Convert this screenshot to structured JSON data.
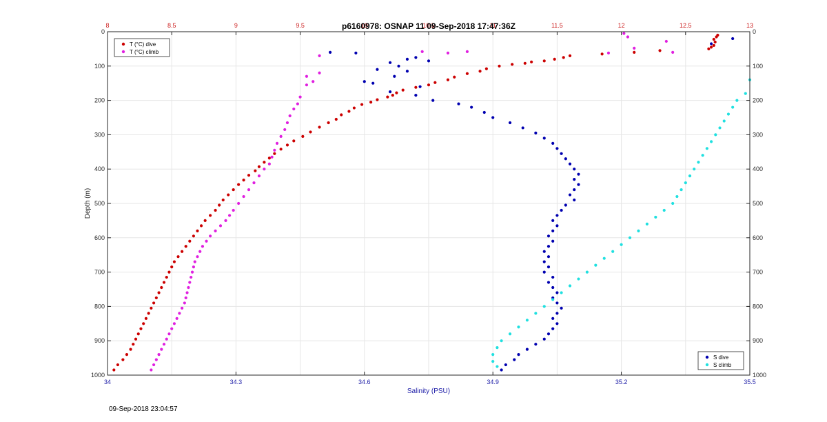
{
  "chart_data": {
    "type": "scatter",
    "title": "p6160978: OSNAP 11 09-Sep-2018 17:47:36Z",
    "xlabel": "Salinity (PSU)",
    "ylabel": "Depth (m)",
    "xlim": [
      34,
      35.5
    ],
    "x_ticks": [
      "34",
      "34.3",
      "34.6",
      "34.9",
      "35.2",
      "35.5"
    ],
    "x_tick_values": [
      34,
      34.3,
      34.6,
      34.9,
      35.2,
      35.5
    ],
    "x2lim": [
      8,
      13
    ],
    "x2_ticks": [
      "8",
      "8.5",
      "9",
      "9.5",
      "10",
      "10.5",
      "11",
      "11.5",
      "12",
      "12.5",
      "13"
    ],
    "x2_tick_values": [
      8,
      8.5,
      9,
      9.5,
      10,
      10.5,
      11,
      11.5,
      12,
      12.5,
      13
    ],
    "ylim": [
      0,
      1000
    ],
    "y_ticks": [
      "0",
      "100",
      "200",
      "300",
      "400",
      "500",
      "600",
      "700",
      "800",
      "900",
      "1000"
    ],
    "y_tick_values": [
      0,
      100,
      200,
      300,
      400,
      500,
      600,
      700,
      800,
      900,
      1000
    ],
    "y_reversed": true,
    "grid": true,
    "legend_left": {
      "placement": "top-left",
      "entries": [
        "T (°C) dive",
        "T (°C) climb"
      ]
    },
    "legend_right": {
      "placement": "bottom-right",
      "entries": [
        "S dive",
        "S climb"
      ]
    },
    "colors": {
      "t_dive": "#cc0000",
      "t_climb": "#e020e0",
      "s_dive": "#0000b0",
      "s_climb": "#20e0e0",
      "bottom_axis": "#1a1aa6",
      "top_axis": "#cc2020"
    },
    "series": [
      {
        "name": "T (°C) dive",
        "axis": "top",
        "points": [
          [
            12.75,
            10
          ],
          [
            12.74,
            15
          ],
          [
            12.72,
            22
          ],
          [
            12.73,
            30
          ],
          [
            12.72,
            40
          ],
          [
            12.7,
            45
          ],
          [
            12.68,
            50
          ],
          [
            12.3,
            55
          ],
          [
            12.1,
            60
          ],
          [
            11.85,
            65
          ],
          [
            11.6,
            70
          ],
          [
            11.55,
            75
          ],
          [
            11.48,
            80
          ],
          [
            11.4,
            85
          ],
          [
            11.3,
            88
          ],
          [
            11.25,
            92
          ],
          [
            11.15,
            95
          ],
          [
            11.05,
            100
          ],
          [
            10.95,
            108
          ],
          [
            10.9,
            115
          ],
          [
            10.8,
            122
          ],
          [
            10.7,
            132
          ],
          [
            10.65,
            140
          ],
          [
            10.55,
            148
          ],
          [
            10.5,
            155
          ],
          [
            10.4,
            162
          ],
          [
            10.3,
            170
          ],
          [
            10.25,
            178
          ],
          [
            10.22,
            185
          ],
          [
            10.18,
            190
          ],
          [
            10.1,
            198
          ],
          [
            10.05,
            205
          ],
          [
            9.98,
            212
          ],
          [
            9.92,
            222
          ],
          [
            9.88,
            232
          ],
          [
            9.82,
            242
          ],
          [
            9.78,
            255
          ],
          [
            9.72,
            265
          ],
          [
            9.65,
            278
          ],
          [
            9.58,
            292
          ],
          [
            9.52,
            305
          ],
          [
            9.45,
            318
          ],
          [
            9.4,
            330
          ],
          [
            9.35,
            342
          ],
          [
            9.3,
            355
          ],
          [
            9.26,
            368
          ],
          [
            9.22,
            380
          ],
          [
            9.18,
            393
          ],
          [
            9.15,
            405
          ],
          [
            9.1,
            418
          ],
          [
            9.06,
            432
          ],
          [
            9.02,
            445
          ],
          [
            8.98,
            460
          ],
          [
            8.94,
            475
          ],
          [
            8.9,
            490
          ],
          [
            8.87,
            505
          ],
          [
            8.84,
            520
          ],
          [
            8.8,
            535
          ],
          [
            8.76,
            550
          ],
          [
            8.73,
            565
          ],
          [
            8.7,
            580
          ],
          [
            8.67,
            595
          ],
          [
            8.64,
            610
          ],
          [
            8.61,
            625
          ],
          [
            8.58,
            640
          ],
          [
            8.55,
            655
          ],
          [
            8.52,
            670
          ],
          [
            8.5,
            685
          ],
          [
            8.48,
            700
          ],
          [
            8.46,
            715
          ],
          [
            8.44,
            730
          ],
          [
            8.42,
            745
          ],
          [
            8.4,
            760
          ],
          [
            8.38,
            775
          ],
          [
            8.36,
            790
          ],
          [
            8.34,
            805
          ],
          [
            8.32,
            820
          ],
          [
            8.3,
            835
          ],
          [
            8.28,
            850
          ],
          [
            8.26,
            865
          ],
          [
            8.24,
            880
          ],
          [
            8.22,
            895
          ],
          [
            8.2,
            910
          ],
          [
            8.18,
            925
          ],
          [
            8.15,
            940
          ],
          [
            8.12,
            955
          ],
          [
            8.08,
            970
          ],
          [
            8.05,
            985
          ]
        ]
      },
      {
        "name": "T (°C) climb",
        "axis": "top",
        "points": [
          [
            12.02,
            5
          ],
          [
            12.05,
            15
          ],
          [
            12.1,
            48
          ],
          [
            12.35,
            28
          ],
          [
            12.4,
            60
          ],
          [
            11.9,
            62
          ],
          [
            10.8,
            58
          ],
          [
            10.65,
            62
          ],
          [
            10.45,
            58
          ],
          [
            9.65,
            70
          ],
          [
            9.55,
            130
          ],
          [
            9.6,
            145
          ],
          [
            9.55,
            155
          ],
          [
            9.65,
            120
          ],
          [
            9.5,
            190
          ],
          [
            9.48,
            210
          ],
          [
            9.45,
            225
          ],
          [
            9.42,
            245
          ],
          [
            9.4,
            265
          ],
          [
            9.38,
            285
          ],
          [
            9.35,
            305
          ],
          [
            9.32,
            325
          ],
          [
            9.3,
            345
          ],
          [
            9.28,
            365
          ],
          [
            9.26,
            385
          ],
          [
            9.22,
            400
          ],
          [
            9.18,
            420
          ],
          [
            9.14,
            440
          ],
          [
            9.1,
            460
          ],
          [
            9.06,
            480
          ],
          [
            9.02,
            500
          ],
          [
            8.98,
            520
          ],
          [
            8.95,
            535
          ],
          [
            8.92,
            550
          ],
          [
            8.88,
            565
          ],
          [
            8.84,
            580
          ],
          [
            8.8,
            595
          ],
          [
            8.77,
            610
          ],
          [
            8.74,
            625
          ],
          [
            8.72,
            640
          ],
          [
            8.7,
            655
          ],
          [
            8.68,
            670
          ],
          [
            8.67,
            685
          ],
          [
            8.66,
            700
          ],
          [
            8.65,
            715
          ],
          [
            8.64,
            730
          ],
          [
            8.63,
            745
          ],
          [
            8.62,
            760
          ],
          [
            8.61,
            775
          ],
          [
            8.6,
            790
          ],
          [
            8.58,
            805
          ],
          [
            8.56,
            820
          ],
          [
            8.54,
            835
          ],
          [
            8.52,
            850
          ],
          [
            8.5,
            865
          ],
          [
            8.48,
            880
          ],
          [
            8.46,
            895
          ],
          [
            8.44,
            910
          ],
          [
            8.42,
            925
          ],
          [
            8.4,
            940
          ],
          [
            8.38,
            955
          ],
          [
            8.36,
            970
          ],
          [
            8.34,
            985
          ]
        ]
      },
      {
        "name": "S dive",
        "axis": "bottom",
        "points": [
          [
            35.46,
            20
          ],
          [
            35.41,
            35
          ],
          [
            34.52,
            60
          ],
          [
            34.58,
            62
          ],
          [
            34.72,
            75
          ],
          [
            34.7,
            80
          ],
          [
            34.66,
            90
          ],
          [
            34.75,
            85
          ],
          [
            34.68,
            100
          ],
          [
            34.63,
            110
          ],
          [
            34.7,
            115
          ],
          [
            34.67,
            130
          ],
          [
            34.62,
            150
          ],
          [
            34.6,
            145
          ],
          [
            34.73,
            160
          ],
          [
            34.66,
            175
          ],
          [
            34.72,
            185
          ],
          [
            34.76,
            200
          ],
          [
            34.82,
            210
          ],
          [
            34.85,
            220
          ],
          [
            34.88,
            235
          ],
          [
            34.9,
            250
          ],
          [
            34.94,
            265
          ],
          [
            34.97,
            280
          ],
          [
            35.0,
            295
          ],
          [
            35.02,
            310
          ],
          [
            35.04,
            325
          ],
          [
            35.05,
            340
          ],
          [
            35.06,
            355
          ],
          [
            35.07,
            370
          ],
          [
            35.08,
            385
          ],
          [
            35.09,
            400
          ],
          [
            35.1,
            415
          ],
          [
            35.09,
            430
          ],
          [
            35.1,
            445
          ],
          [
            35.09,
            460
          ],
          [
            35.08,
            475
          ],
          [
            35.09,
            490
          ],
          [
            35.07,
            505
          ],
          [
            35.06,
            520
          ],
          [
            35.05,
            535
          ],
          [
            35.04,
            550
          ],
          [
            35.05,
            565
          ],
          [
            35.04,
            580
          ],
          [
            35.03,
            595
          ],
          [
            35.04,
            610
          ],
          [
            35.03,
            625
          ],
          [
            35.02,
            640
          ],
          [
            35.03,
            655
          ],
          [
            35.02,
            670
          ],
          [
            35.03,
            685
          ],
          [
            35.02,
            700
          ],
          [
            35.04,
            715
          ],
          [
            35.03,
            730
          ],
          [
            35.04,
            745
          ],
          [
            35.05,
            760
          ],
          [
            35.04,
            775
          ],
          [
            35.05,
            790
          ],
          [
            35.06,
            805
          ],
          [
            35.05,
            820
          ],
          [
            35.04,
            835
          ],
          [
            35.05,
            850
          ],
          [
            35.04,
            865
          ],
          [
            35.03,
            880
          ],
          [
            35.02,
            895
          ],
          [
            35.0,
            910
          ],
          [
            34.98,
            925
          ],
          [
            34.96,
            940
          ],
          [
            34.95,
            955
          ],
          [
            34.93,
            970
          ],
          [
            34.92,
            985
          ]
        ]
      },
      {
        "name": "S climb",
        "axis": "bottom",
        "points": [
          [
            35.5,
            140
          ],
          [
            35.49,
            180
          ],
          [
            35.47,
            200
          ],
          [
            35.46,
            220
          ],
          [
            35.45,
            240
          ],
          [
            35.44,
            260
          ],
          [
            35.43,
            280
          ],
          [
            35.42,
            300
          ],
          [
            35.41,
            320
          ],
          [
            35.4,
            340
          ],
          [
            35.39,
            360
          ],
          [
            35.38,
            380
          ],
          [
            35.37,
            400
          ],
          [
            35.36,
            420
          ],
          [
            35.35,
            440
          ],
          [
            35.34,
            460
          ],
          [
            35.33,
            480
          ],
          [
            35.32,
            500
          ],
          [
            35.3,
            520
          ],
          [
            35.28,
            540
          ],
          [
            35.26,
            560
          ],
          [
            35.24,
            580
          ],
          [
            35.22,
            600
          ],
          [
            35.2,
            620
          ],
          [
            35.18,
            640
          ],
          [
            35.16,
            660
          ],
          [
            35.14,
            680
          ],
          [
            35.12,
            700
          ],
          [
            35.1,
            720
          ],
          [
            35.08,
            740
          ],
          [
            35.06,
            760
          ],
          [
            35.04,
            780
          ],
          [
            35.02,
            800
          ],
          [
            35.0,
            820
          ],
          [
            34.98,
            840
          ],
          [
            34.96,
            860
          ],
          [
            34.94,
            880
          ],
          [
            34.92,
            900
          ],
          [
            34.91,
            920
          ],
          [
            34.9,
            940
          ],
          [
            34.9,
            960
          ],
          [
            34.91,
            975
          ]
        ]
      }
    ]
  },
  "footer": {
    "timestamp": "09-Sep-2018 23:04:57"
  }
}
